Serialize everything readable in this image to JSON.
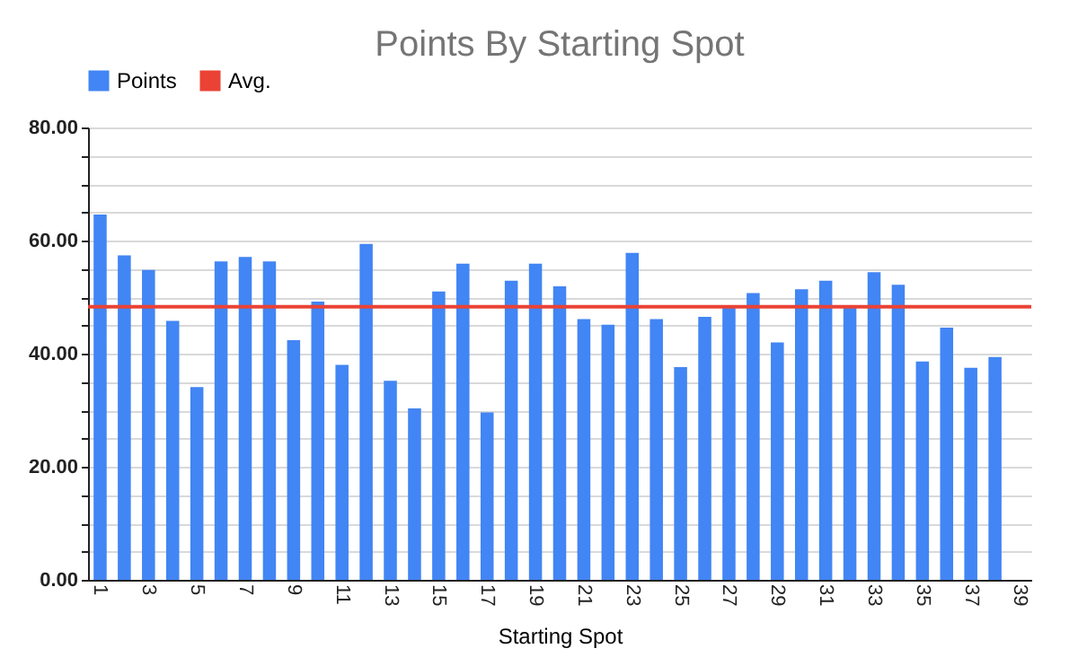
{
  "chart_data": {
    "type": "bar",
    "title": "Points By Starting Spot",
    "xlabel": "Starting Spot",
    "categories": [
      "1",
      null,
      "3",
      null,
      "5",
      null,
      "7",
      null,
      "9",
      null,
      "11",
      null,
      "13",
      null,
      "15",
      null,
      "17",
      null,
      "19",
      null,
      "21",
      null,
      "23",
      null,
      "25",
      null,
      "27",
      null,
      "29",
      null,
      "31",
      null,
      "33",
      null,
      "35",
      null,
      "37",
      null,
      "39"
    ],
    "series": [
      {
        "name": "Points",
        "color": "#4285f4",
        "values": [
          64.6,
          57.4,
          54.8,
          45.8,
          34.1,
          56.3,
          57.1,
          56.3,
          42.4,
          49.2,
          38.0,
          59.4,
          35.2,
          30.3,
          51.0,
          55.9,
          29.6,
          52.9,
          55.9,
          51.9,
          46.1,
          45.1,
          57.8,
          46.1,
          37.6,
          46.5,
          48.3,
          50.7,
          42.0,
          51.4,
          52.9,
          48.3,
          54.4,
          52.2,
          38.6,
          44.6,
          37.5,
          39.4,
          null
        ]
      }
    ],
    "ref_lines": [
      {
        "axis": "y",
        "value": 48.3,
        "label": "Avg.",
        "color": "#ea4335"
      }
    ],
    "ylim": [
      0,
      80
    ],
    "yticks": [
      {
        "value": 0,
        "label": "0.00"
      },
      {
        "value": 5,
        "label": null
      },
      {
        "value": 10,
        "label": null
      },
      {
        "value": 15,
        "label": null
      },
      {
        "value": 20,
        "label": "20.00"
      },
      {
        "value": 25,
        "label": null
      },
      {
        "value": 30,
        "label": null
      },
      {
        "value": 35,
        "label": null
      },
      {
        "value": 40,
        "label": "40.00"
      },
      {
        "value": 45,
        "label": null
      },
      {
        "value": 50,
        "label": null
      },
      {
        "value": 55,
        "label": null
      },
      {
        "value": 60,
        "label": "60.00"
      },
      {
        "value": 65,
        "label": null
      },
      {
        "value": 70,
        "label": null
      },
      {
        "value": 75,
        "label": null
      },
      {
        "value": 80,
        "label": "80.00"
      }
    ],
    "grid": "y",
    "legend": "top"
  }
}
